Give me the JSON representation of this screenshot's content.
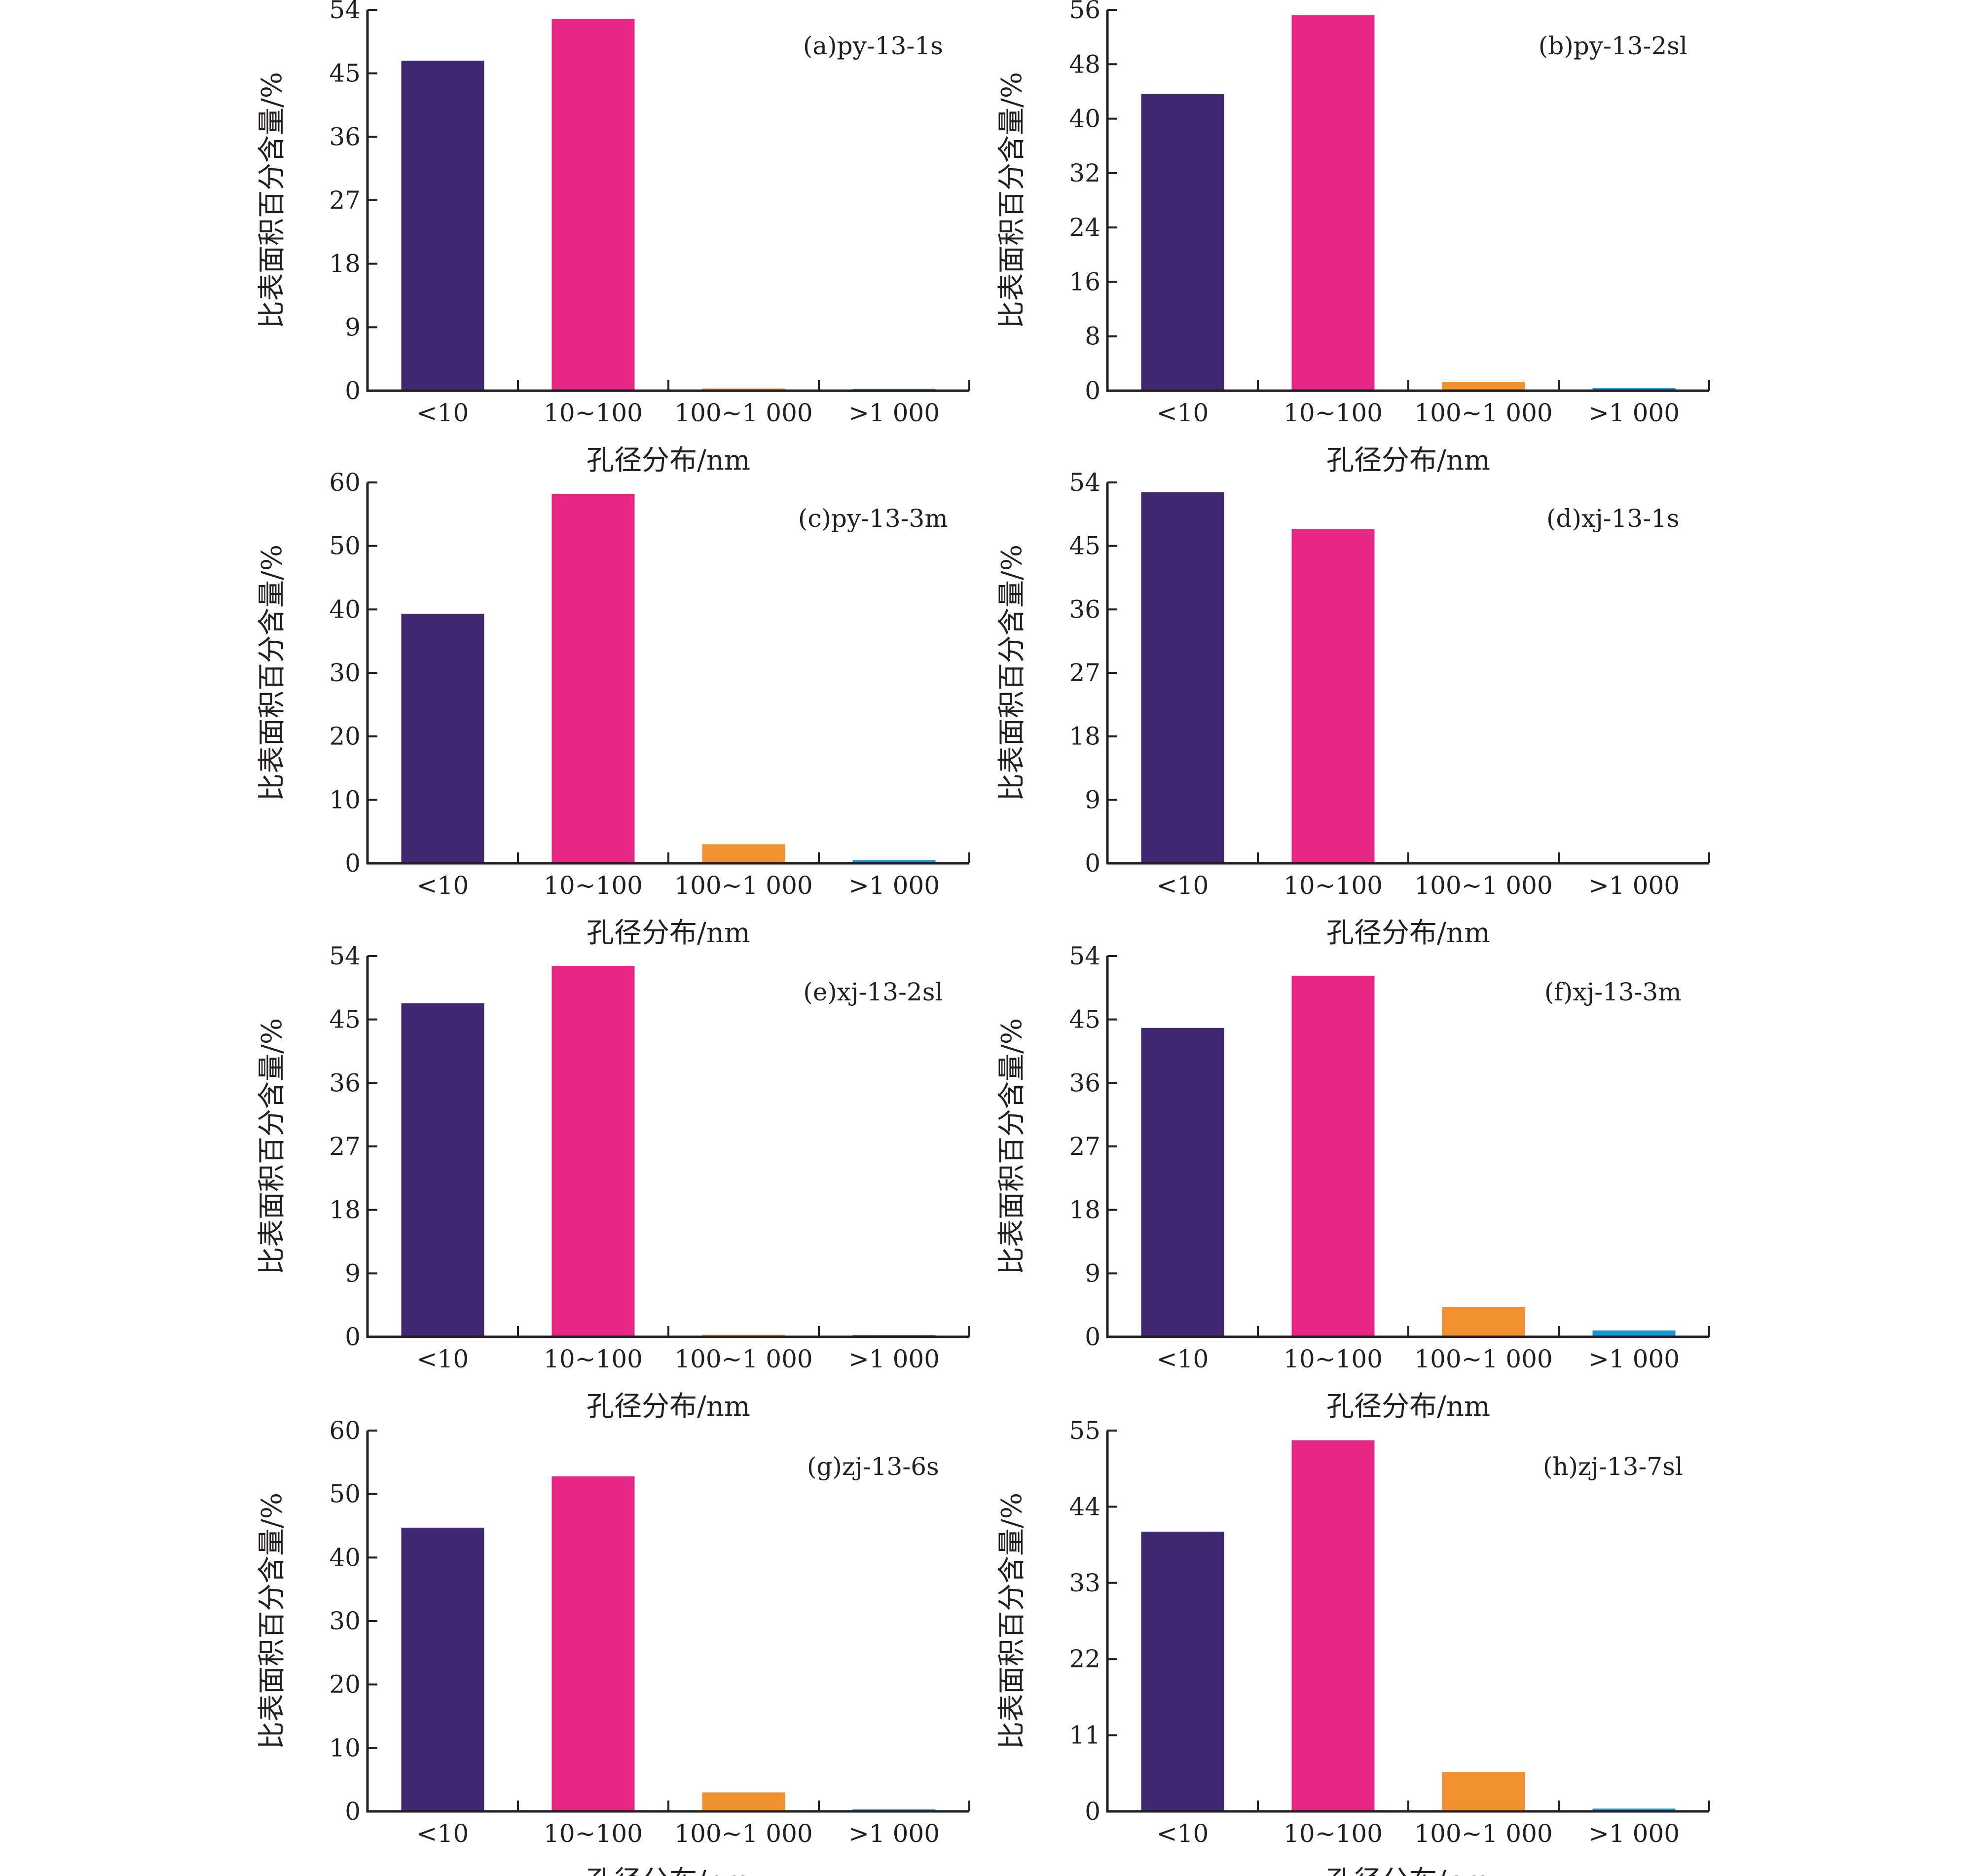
{
  "colors": {
    "cat0": "#3f2771",
    "cat1": "#e72783",
    "cat2": "#f0902e",
    "cat3": "#1797d3",
    "axis": "#231f20"
  },
  "chart_data": [
    {
      "type": "bar",
      "label": "(a)py-13-1s",
      "categories": [
        "<10",
        "10~100",
        "100~1 000",
        ">1 000"
      ],
      "values": [
        46.8,
        52.7,
        0.3,
        0.2
      ],
      "ylim": [
        0,
        54
      ],
      "yticks": [
        0,
        9,
        18,
        27,
        36,
        45,
        54
      ],
      "xlabel": "孔径分布/nm",
      "ylabel": "比表面积百分含量/%"
    },
    {
      "type": "bar",
      "label": "(b)py-13-2sl",
      "categories": [
        "<10",
        "10~100",
        "100~1 000",
        ">1 000"
      ],
      "values": [
        43.6,
        55.2,
        1.3,
        0.4
      ],
      "ylim": [
        0,
        56
      ],
      "yticks": [
        0,
        8,
        16,
        24,
        32,
        40,
        48,
        56
      ],
      "xlabel": "孔径分布/nm",
      "ylabel": "比表面积百分含量/%"
    },
    {
      "type": "bar",
      "label": "(c)py-13-3m",
      "categories": [
        "<10",
        "10~100",
        "100~1 000",
        ">1 000"
      ],
      "values": [
        39.3,
        58.2,
        3.0,
        0.5
      ],
      "ylim": [
        0,
        60
      ],
      "yticks": [
        0,
        10,
        20,
        30,
        40,
        50,
        60
      ],
      "xlabel": "孔径分布/nm",
      "ylabel": "比表面积百分含量/%"
    },
    {
      "type": "bar",
      "label": "(d)xj-13-1s",
      "categories": [
        "<10",
        "10~100",
        "100~1 000",
        ">1 000"
      ],
      "values": [
        52.6,
        47.4,
        0,
        0
      ],
      "ylim": [
        0,
        54
      ],
      "yticks": [
        0,
        9,
        18,
        27,
        36,
        45,
        54
      ],
      "xlabel": "孔径分布/nm",
      "ylabel": "比表面积百分含量/%"
    },
    {
      "type": "bar",
      "label": "(e)xj-13-2sl",
      "categories": [
        "<10",
        "10~100",
        "100~1 000",
        ">1 000"
      ],
      "values": [
        47.3,
        52.6,
        0.3,
        0.2
      ],
      "ylim": [
        0,
        54
      ],
      "yticks": [
        0,
        9,
        18,
        27,
        36,
        45,
        54
      ],
      "xlabel": "孔径分布/nm",
      "ylabel": "比表面积百分含量/%"
    },
    {
      "type": "bar",
      "label": "(f)xj-13-3m",
      "categories": [
        "<10",
        "10~100",
        "100~1 000",
        ">1 000"
      ],
      "values": [
        43.8,
        51.2,
        4.2,
        0.9
      ],
      "ylim": [
        0,
        54
      ],
      "yticks": [
        0,
        9,
        18,
        27,
        36,
        45,
        54
      ],
      "xlabel": "孔径分布/nm",
      "ylabel": "比表面积百分含量/%"
    },
    {
      "type": "bar",
      "label": "(g)zj-13-6s",
      "categories": [
        "<10",
        "10~100",
        "100~1 000",
        ">1 000"
      ],
      "values": [
        44.7,
        52.8,
        3.0,
        0.3
      ],
      "ylim": [
        0,
        60
      ],
      "yticks": [
        0,
        10,
        20,
        30,
        40,
        50,
        60
      ],
      "xlabel": "孔径分布/nm",
      "ylabel": "比表面积百分含量/%"
    },
    {
      "type": "bar",
      "label": "(h)zj-13-7sl",
      "categories": [
        "<10",
        "10~100",
        "100~1 000",
        ">1 000"
      ],
      "values": [
        40.4,
        53.6,
        5.7,
        0.4
      ],
      "ylim": [
        0,
        55
      ],
      "yticks": [
        0,
        11,
        22,
        33,
        44,
        55
      ],
      "xlabel": "孔径分布/nm",
      "ylabel": "比表面积百分含量/%"
    }
  ]
}
